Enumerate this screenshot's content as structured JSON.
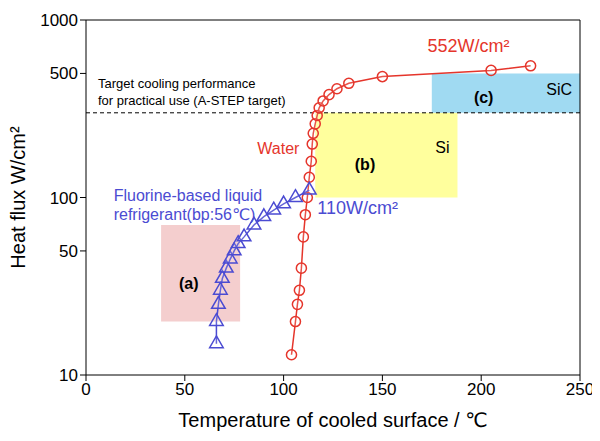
{
  "chart_data": {
    "type": "line",
    "xlabel": "Temperature of cooled surface / ℃",
    "ylabel": "Heat flux W/cm²",
    "xlim": [
      0,
      250
    ],
    "xticks": [
      0,
      50,
      100,
      150,
      200,
      250
    ],
    "ylim": [
      10,
      1000
    ],
    "yticks": [
      10,
      50,
      100,
      500,
      1000
    ],
    "log": "y",
    "grid": false,
    "series": [
      {
        "name": "Water",
        "color": "#e5352b",
        "marker": "circle",
        "line_style": "solid",
        "x": [
          104,
          106,
          107,
          108,
          109,
          110,
          111,
          112,
          113,
          114,
          114.5,
          115,
          116,
          117,
          118,
          120,
          123,
          127,
          133,
          150,
          205,
          225
        ],
        "values": [
          13,
          20,
          25,
          30,
          40,
          60,
          80,
          100,
          130,
          160,
          200,
          230,
          260,
          290,
          320,
          350,
          380,
          410,
          440,
          480,
          520,
          552
        ]
      },
      {
        "name": "Fluorine-based liquid refrigerant(bp:56℃)",
        "color": "#4b4bd2",
        "marker": "triangle",
        "line_style": "solid",
        "x": [
          66,
          66,
          67,
          68,
          69,
          71,
          73,
          75,
          77,
          80,
          85,
          90,
          95,
          100,
          106,
          113
        ],
        "values": [
          15,
          20,
          25,
          30,
          35,
          40,
          45,
          50,
          55,
          60,
          70,
          78,
          85,
          92,
          100,
          110
        ]
      }
    ],
    "annotations": [
      "552W/cm²",
      "110W/cm²"
    ],
    "target": {
      "value": 300,
      "lines": [
        "Target cooling performance",
        "for practical use (A-STEP target)"
      ],
      "color": "#000000"
    },
    "regions": [
      {
        "label": "(a)",
        "xlim": [
          38,
          78
        ],
        "ylim": [
          20,
          70
        ],
        "color": "#f2c6c6"
      },
      {
        "label": "(b)",
        "material": "Si",
        "xlim": [
          116,
          188
        ],
        "ylim": [
          100,
          300
        ],
        "color": "#ffff8c"
      },
      {
        "label": "(c)",
        "material": "SiC",
        "xlim": [
          175,
          250
        ],
        "ylim": [
          300,
          500
        ],
        "color": "#8fd3f0"
      }
    ]
  }
}
